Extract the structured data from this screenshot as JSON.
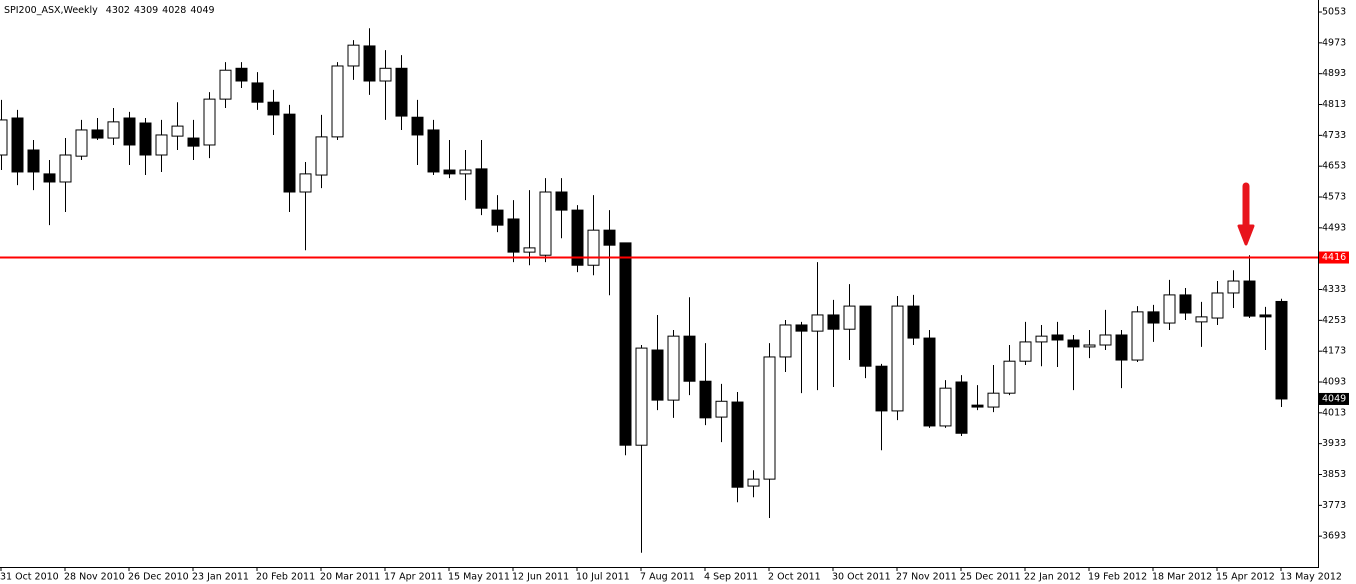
{
  "chart_data": {
    "type": "candlestick",
    "title": "SPI200_ASX,Weekly",
    "x": [
      "31 Oct 2010",
      null,
      null,
      null,
      "28 Nov 2010",
      null,
      null,
      null,
      "26 Dec 2010",
      null,
      null,
      null,
      "23 Jan 2011",
      null,
      null,
      null,
      "20 Feb 2011",
      null,
      null,
      null,
      "20 Mar 2011",
      null,
      null,
      null,
      "17 Apr 2011",
      null,
      null,
      null,
      "15 May 2011",
      null,
      null,
      null,
      "12 Jun 2011",
      null,
      null,
      null,
      "10 Jul 2011",
      null,
      null,
      null,
      "7 Aug 2011",
      null,
      null,
      null,
      "4 Sep 2011",
      null,
      null,
      null,
      "2 Oct 2011",
      null,
      null,
      null,
      "30 Oct 2011",
      null,
      null,
      null,
      "27 Nov 2011",
      null,
      null,
      null,
      "25 Dec 2011",
      null,
      null,
      null,
      "22 Jan 2012",
      null,
      null,
      null,
      "19 Feb 2012",
      null,
      null,
      null,
      "18 Mar 2012",
      null,
      null,
      null,
      "15 Apr 2012",
      null,
      null,
      null,
      "13 May 2012"
    ],
    "open": [
      4682,
      4778,
      4695,
      4633,
      4612,
      4679,
      4747,
      4726,
      4778,
      4765,
      4682,
      4731,
      4726,
      4708,
      4827,
      4907,
      4869,
      4819,
      4788,
      4586,
      4630,
      4729,
      4913,
      4965,
      4874,
      4907,
      4780,
      4747,
      4643,
      4633,
      4646,
      4539,
      4516,
      4430,
      4422,
      4586,
      4539,
      4396,
      4487,
      4454,
      3929,
      4176,
      4046,
      4212,
      4095,
      4002,
      4041,
      3823,
      3841,
      4158,
      4241,
      4225,
      4267,
      4230,
      4290,
      4134,
      4018,
      4290,
      4207,
      3979,
      4093,
      4033,
      4028,
      4064,
      4147,
      4197,
      4215,
      4202,
      4184,
      4189,
      4215,
      4150,
      4275,
      4246,
      4319,
      4249,
      4259,
      4324,
      4355,
      4267,
      4302
    ],
    "high": [
      4825,
      4799,
      4721,
      4669,
      4726,
      4773,
      4778,
      4804,
      4794,
      4778,
      4773,
      4819,
      4773,
      4845,
      4923,
      4923,
      4897,
      4851,
      4812,
      4664,
      4786,
      4923,
      4980,
      5011,
      4954,
      4941,
      4825,
      4773,
      4721,
      4695,
      4721,
      4578,
      4565,
      4591,
      4622,
      4622,
      4552,
      4578,
      4539,
      4454,
      4189,
      4267,
      4228,
      4313,
      4194,
      4088,
      4067,
      3864,
      4194,
      4254,
      4249,
      4404,
      4306,
      4347,
      4290,
      4140,
      4316,
      4319,
      4228,
      4098,
      4111,
      4085,
      4137,
      4189,
      4249,
      4241,
      4249,
      4215,
      4228,
      4280,
      4228,
      4290,
      4293,
      4358,
      4337,
      4301,
      4355,
      4383,
      4422,
      4288,
      4309
    ],
    "low": [
      4643,
      4604,
      4591,
      4500,
      4534,
      4669,
      4721,
      4708,
      4656,
      4630,
      4638,
      4695,
      4669,
      4674,
      4804,
      4856,
      4799,
      4734,
      4534,
      4435,
      4596,
      4721,
      4877,
      4838,
      4773,
      4747,
      4656,
      4630,
      4622,
      4565,
      4526,
      4482,
      4404,
      4396,
      4404,
      4466,
      4378,
      4370,
      4318,
      3903,
      3650,
      4020,
      4000,
      4059,
      3981,
      3937,
      3781,
      3794,
      3740,
      4119,
      4064,
      4072,
      4080,
      4150,
      4103,
      3916,
      3994,
      4189,
      3974,
      3974,
      3953,
      4020,
      4015,
      4059,
      4137,
      4134,
      4132,
      4072,
      4155,
      4176,
      4077,
      4145,
      4197,
      4228,
      4254,
      4184,
      4241,
      4285,
      4259,
      4176,
      4028
    ],
    "close": [
      4773,
      4638,
      4638,
      4612,
      4682,
      4747,
      4726,
      4768,
      4708,
      4682,
      4734,
      4757,
      4705,
      4827,
      4902,
      4874,
      4819,
      4786,
      4586,
      4633,
      4729,
      4913,
      4967,
      4874,
      4907,
      4783,
      4734,
      4638,
      4633,
      4643,
      4544,
      4500,
      4430,
      4441,
      4586,
      4539,
      4396,
      4487,
      4448,
      3929,
      4181,
      4046,
      4212,
      4095,
      4000,
      4043,
      3820,
      3841,
      4158,
      4241,
      4225,
      4267,
      4230,
      4290,
      4134,
      4018,
      4290,
      4207,
      3979,
      4077,
      3960,
      4028,
      4064,
      4147,
      4197,
      4212,
      4202,
      4184,
      4189,
      4215,
      4150,
      4275,
      4246,
      4319,
      4272,
      4262,
      4324,
      4355,
      4264,
      4262,
      4049
    ],
    "up_color": "#ffffff",
    "down_color": "#000000",
    "ylim": [
      3613,
      5079
    ],
    "yticks": [
      3693,
      3773,
      3853,
      3933,
      4013,
      4093,
      4173,
      4253,
      4333,
      4493,
      4573,
      4653,
      4733,
      4813,
      4893,
      4973,
      5053
    ],
    "hline": {
      "value": 4416,
      "color": "#ff0000"
    }
  }
}
